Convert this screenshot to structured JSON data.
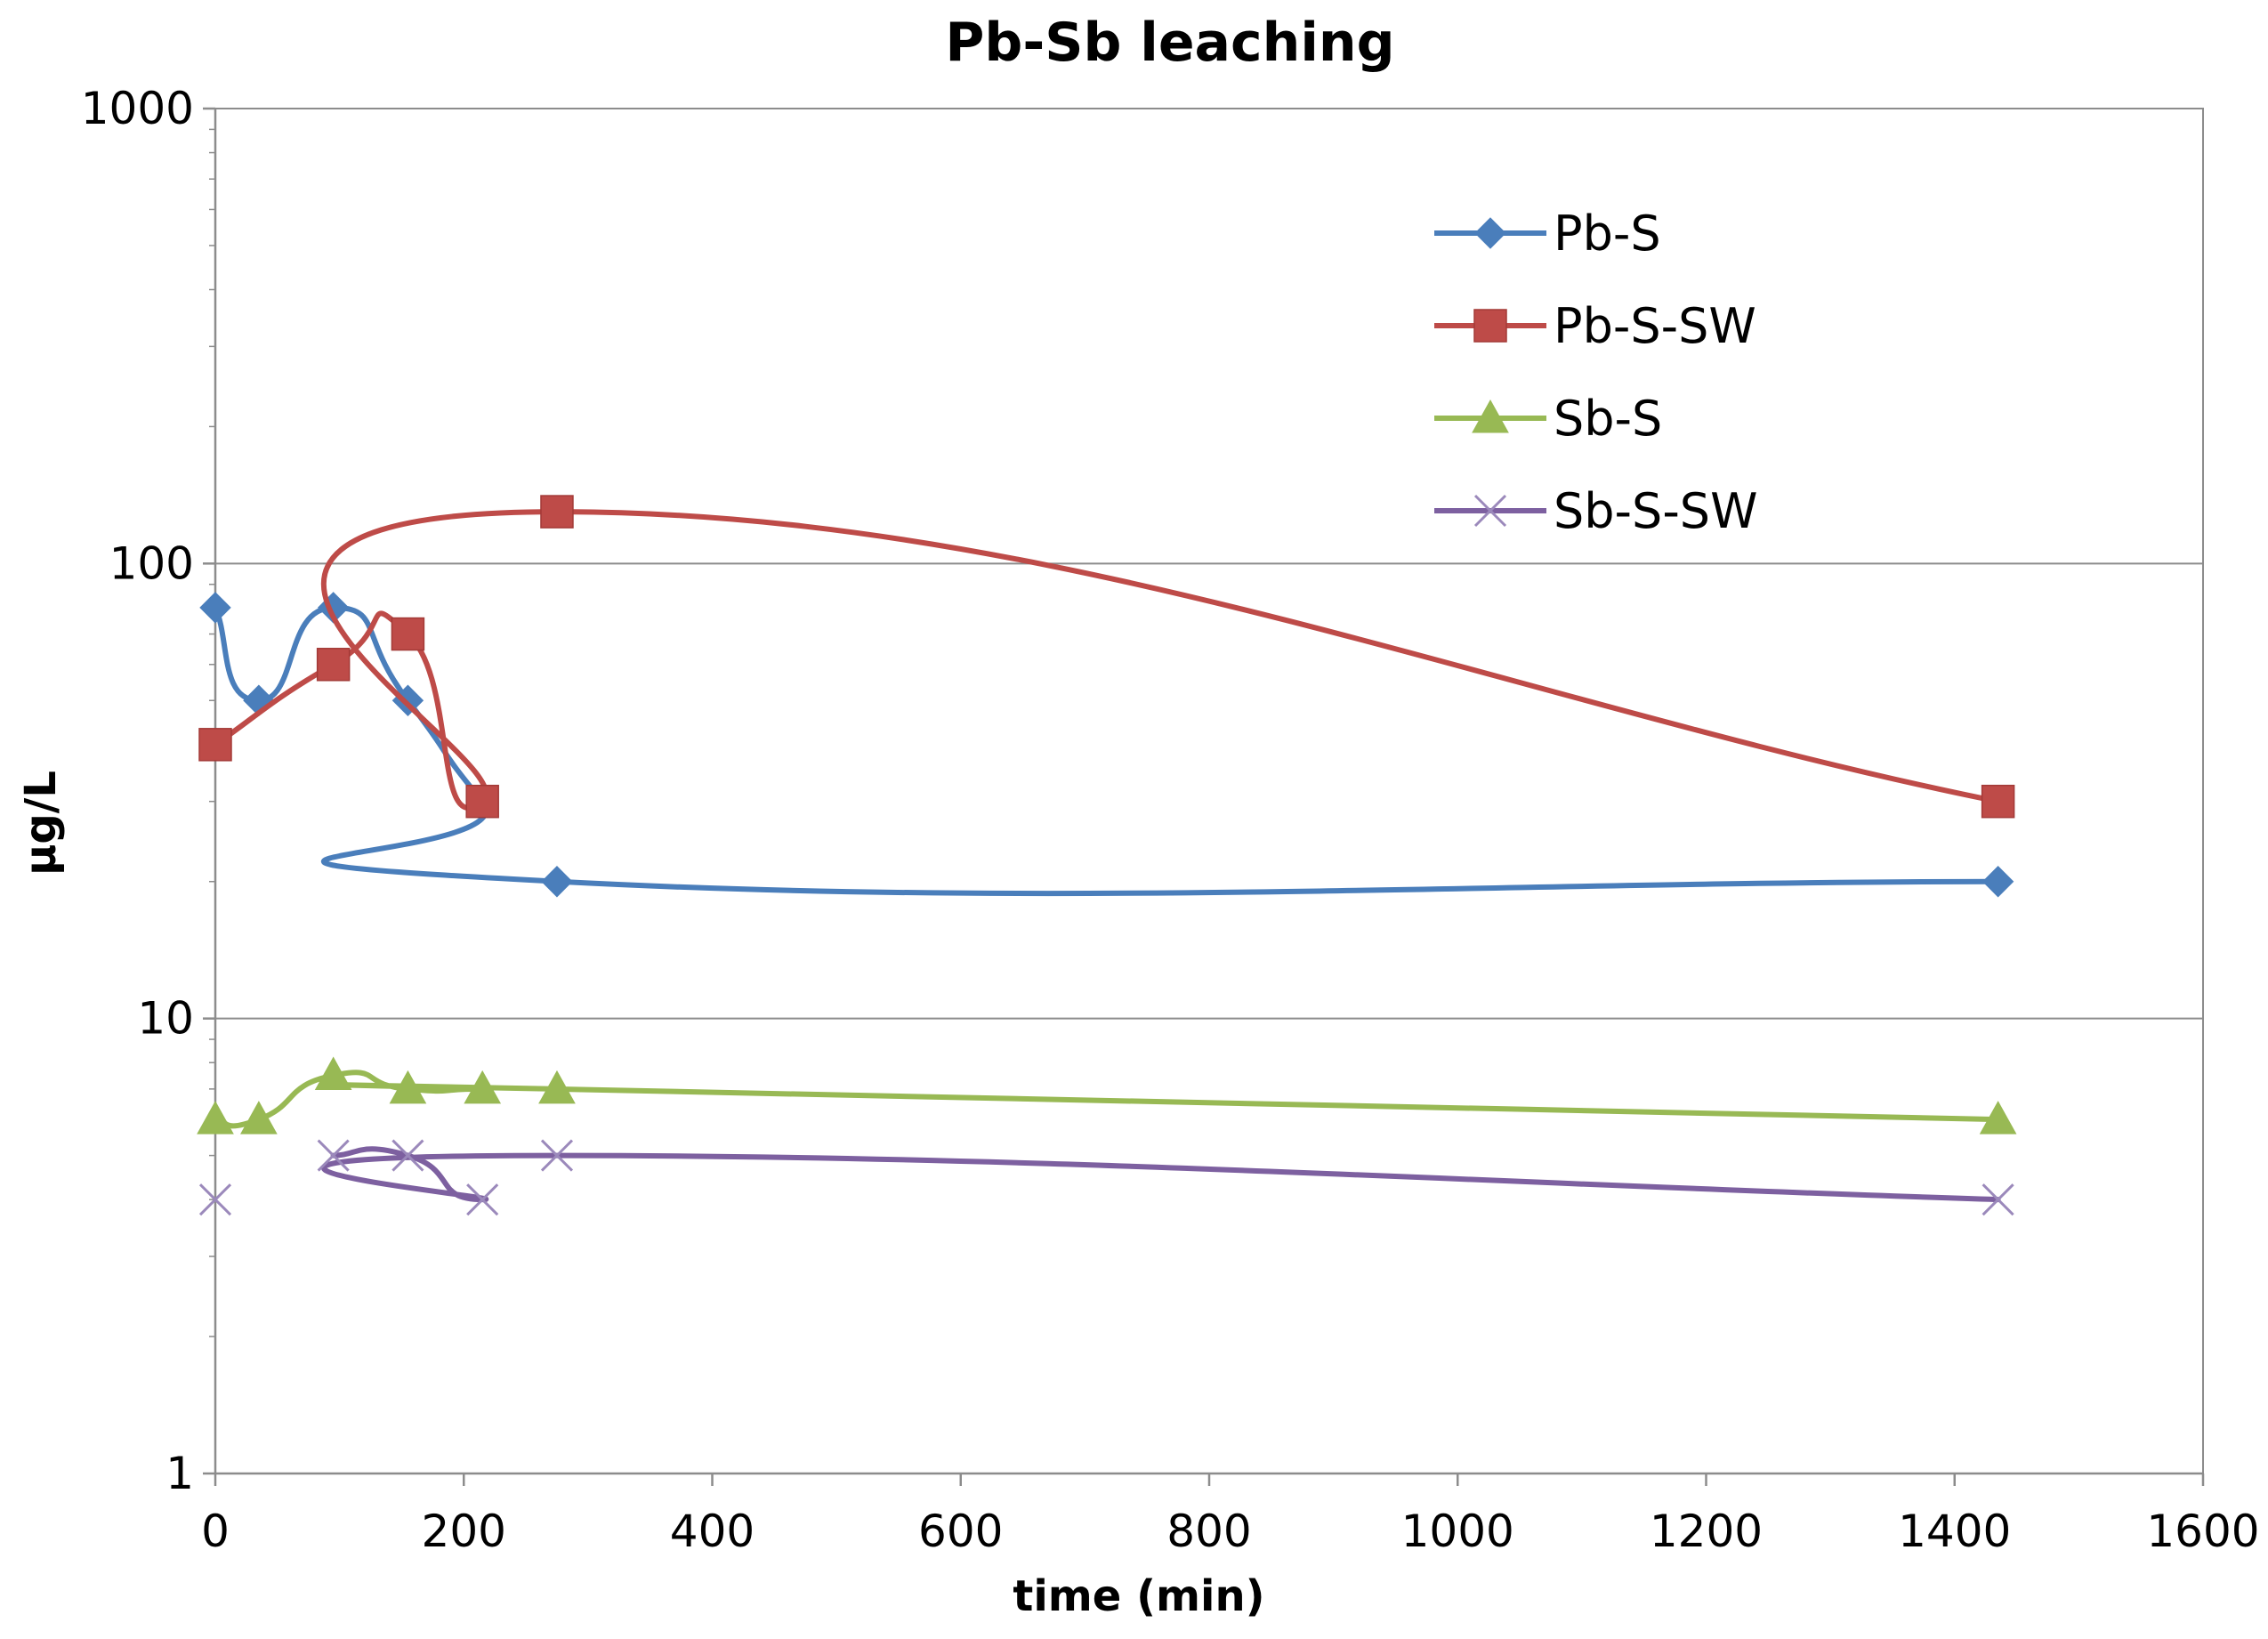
{
  "chart_data": {
    "type": "line",
    "title": "Pb-Sb leaching",
    "xlabel": "time (min)",
    "ylabel": "µg/L",
    "xlim": [
      0,
      1600
    ],
    "ylim": [
      1,
      1000
    ],
    "yscale": "log",
    "x_ticks": [
      0,
      200,
      400,
      600,
      800,
      1000,
      1200,
      1400,
      1600
    ],
    "y_ticks": [
      1,
      10,
      100,
      1000
    ],
    "grid": "y-major",
    "legend_position": "top-right",
    "series": [
      {
        "name": "Pb-S",
        "color": "#4a7ebb",
        "marker": "diamond",
        "x": [
          0,
          35,
          95,
          155,
          215,
          275,
          1435
        ],
        "y": [
          80,
          50,
          80,
          50,
          30,
          20,
          20
        ]
      },
      {
        "name": "Pb-S-SW",
        "color": "#be4b48",
        "marker": "square",
        "x": [
          0,
          95,
          155,
          215,
          275,
          1435
        ],
        "y": [
          40,
          60,
          70,
          30,
          130,
          30
        ]
      },
      {
        "name": "Sb-S",
        "color": "#98b954",
        "marker": "triangle",
        "x": [
          0,
          35,
          95,
          155,
          215,
          275,
          1435
        ],
        "y": [
          6,
          6,
          7.5,
          7,
          7,
          7,
          6
        ]
      },
      {
        "name": "Sb-S-SW",
        "color": "#7d60a0",
        "marker": "x",
        "x": [
          0,
          95,
          155,
          215,
          275,
          1435
        ],
        "y": [
          4,
          5,
          5,
          4,
          5,
          4
        ]
      }
    ]
  }
}
